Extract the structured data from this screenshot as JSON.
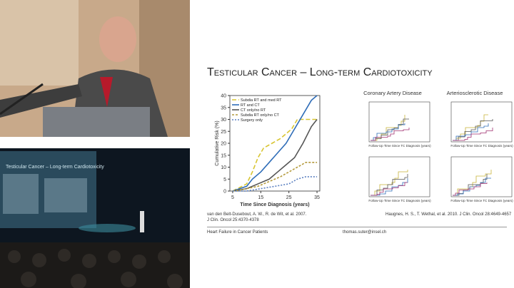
{
  "slide": {
    "title": "Testicular Cancer – Long-term Cardiotoxicity",
    "chart": {
      "type": "line",
      "ylabel": "Cumulative Risk (%)",
      "xlabel": "Time Since Diagnosis (years)",
      "xlim": [
        4,
        36
      ],
      "ylim": [
        0,
        40
      ],
      "xticks": [
        5,
        15,
        25,
        35
      ],
      "yticks": [
        0,
        5,
        10,
        15,
        20,
        25,
        30,
        35,
        40
      ],
      "series": [
        {
          "name": "Subdia RT and med RT",
          "color": "#d8c531",
          "x": [
            5,
            10,
            12,
            14,
            16,
            19,
            22,
            26,
            28,
            35
          ],
          "values": [
            0,
            3,
            8,
            14,
            18,
            20,
            22,
            26,
            30,
            30
          ]
        },
        {
          "name": "RT and CT",
          "color": "#2f6db8",
          "x": [
            5,
            10,
            12,
            15,
            18,
            21,
            24,
            27,
            30,
            33,
            35
          ],
          "values": [
            0,
            2,
            5,
            8,
            12,
            16,
            20,
            26,
            32,
            38,
            40
          ]
        },
        {
          "name": "CT only/no RT",
          "color": "#555555",
          "x": [
            5,
            10,
            14,
            18,
            21,
            24,
            27,
            30,
            33,
            35
          ],
          "values": [
            0,
            1,
            3,
            5,
            8,
            11,
            14,
            20,
            27,
            30
          ]
        },
        {
          "name": "Subdia RT only/no CT",
          "color": "#b49a3c",
          "x": [
            5,
            10,
            14,
            18,
            22,
            25,
            28,
            31,
            35
          ],
          "values": [
            0,
            1,
            2,
            4,
            6,
            8,
            10,
            12,
            12
          ]
        },
        {
          "name": "Surgery only",
          "color": "#5a7fc0",
          "x": [
            5,
            10,
            15,
            20,
            25,
            28,
            31,
            35
          ],
          "values": [
            0,
            0,
            1,
            2,
            3,
            5,
            6,
            6
          ]
        }
      ]
    },
    "panels": [
      "Coronary Artery Disease",
      "Arteriosclerotic Disease"
    ],
    "panel_xlabel": "Follow-Up Time Since TC Diagnosis (years)",
    "citation_left": [
      "van den Belt-Dusebout, A. W., R. de Wit, et al. 2007.",
      "J Clin. Oncol 25:4370-4378"
    ],
    "citation_right": "Haugnes, H. S., T. Wethal, et al. 2010. J Clin. Oncol 28:4649-4657",
    "footer_left": "Heart Failure in Cancer Patients",
    "footer_right": "thomas.suter@insel.ch"
  }
}
